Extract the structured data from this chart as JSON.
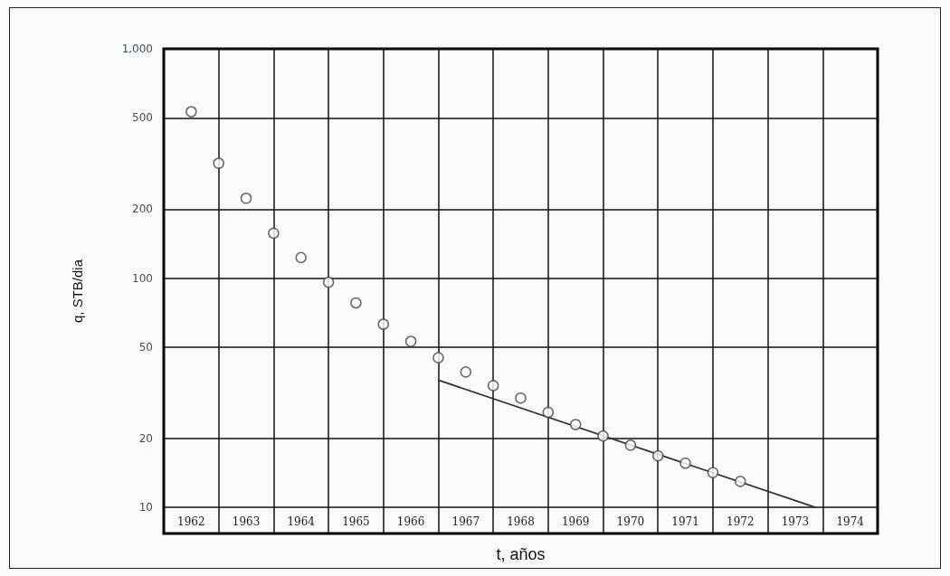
{
  "chart_data": {
    "type": "scatter",
    "xlabel": "t, años",
    "ylabel": "q, STB/dia",
    "log": "y",
    "grid": true,
    "marker": "circle",
    "xlim": [
      1962,
      1975
    ],
    "ylim": [
      7.7,
      1000
    ],
    "xticks": [
      {
        "value": 1963,
        "label": null
      },
      {
        "value": 1964,
        "label": null
      },
      {
        "value": 1965,
        "label": null
      },
      {
        "value": 1966,
        "label": null
      },
      {
        "value": 1967,
        "label": null
      },
      {
        "value": 1968,
        "label": null
      },
      {
        "value": 1969,
        "label": null
      },
      {
        "value": 1970,
        "label": null
      },
      {
        "value": 1971,
        "label": null
      },
      {
        "value": 1972,
        "label": null
      },
      {
        "value": 1973,
        "label": null
      },
      {
        "value": 1974,
        "label": null
      },
      {
        "value": 1962.5,
        "label": "1962"
      },
      {
        "value": 1963.5,
        "label": "1963"
      },
      {
        "value": 1964.5,
        "label": "1964"
      },
      {
        "value": 1965.5,
        "label": "1965"
      },
      {
        "value": 1966.5,
        "label": "1966"
      },
      {
        "value": 1967.5,
        "label": "1967"
      },
      {
        "value": 1968.5,
        "label": "1968"
      },
      {
        "value": 1969.5,
        "label": "1969"
      },
      {
        "value": 1970.5,
        "label": "1970"
      },
      {
        "value": 1971.5,
        "label": "1971"
      },
      {
        "value": 1972.5,
        "label": "1972"
      },
      {
        "value": 1973.5,
        "label": "1973"
      },
      {
        "value": 1974.5,
        "label": "1974"
      }
    ],
    "yticks": [
      10,
      20,
      50,
      100,
      200,
      500,
      {
        "value": 1000,
        "label": "1,000"
      }
    ],
    "series": [
      {
        "color": "#444444",
        "x": [
          1962.5,
          1963,
          1963.5,
          1964,
          1964.5,
          1965,
          1965.5,
          1966,
          1966.5,
          1967,
          1967.5,
          1968,
          1968.5,
          1969,
          1969.5,
          1970,
          1970.5,
          1971,
          1971.5,
          1972,
          1972.5
        ],
        "values": [
          532,
          317,
          223,
          157,
          123,
          96,
          78,
          63,
          53,
          45,
          39,
          34,
          30,
          26,
          23,
          20.5,
          18.7,
          16.8,
          15.6,
          14.2,
          13
        ]
      },
      {
        "type": "line",
        "color": "#333333",
        "marker": "none",
        "line_style": "solid",
        "x": [
          1967,
          1973.87
        ],
        "values": [
          35.9,
          10
        ]
      }
    ]
  }
}
